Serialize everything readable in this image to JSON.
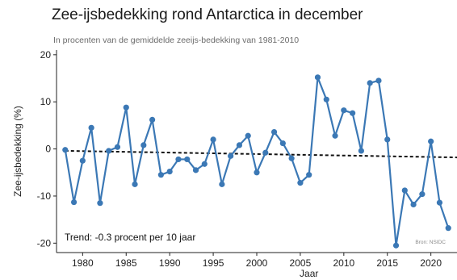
{
  "chart_data": {
    "type": "line",
    "title": "Zee-ijsbedekking rond Antarctica in december",
    "subtitle": "In procenten van de gemiddelde zeeijs-bedekking van 1981-2010",
    "xlabel": "Jaar",
    "ylabel": "Zee-ijsbedekking (%)",
    "xlim": [
      1977,
      2023
    ],
    "ylim": [
      -22,
      21
    ],
    "xticks": [
      1980,
      1985,
      1990,
      1995,
      2000,
      2005,
      2010,
      2015,
      2020
    ],
    "yticks": [
      -20,
      -10,
      0,
      10,
      20
    ],
    "grid": false,
    "series_color": "#3b78b5",
    "x": [
      1978,
      1979,
      1980,
      1981,
      1982,
      1983,
      1984,
      1985,
      1986,
      1987,
      1988,
      1989,
      1990,
      1991,
      1992,
      1993,
      1994,
      1995,
      1996,
      1997,
      1998,
      1999,
      2000,
      2001,
      2002,
      2003,
      2004,
      2005,
      2006,
      2007,
      2008,
      2009,
      2010,
      2011,
      2012,
      2013,
      2014,
      2015,
      2016,
      2017,
      2018,
      2019,
      2020,
      2021,
      2022
    ],
    "values": [
      -0.2,
      -11.3,
      -2.5,
      4.5,
      -11.5,
      -0.4,
      0.4,
      8.8,
      -7.5,
      0.8,
      6.2,
      -5.5,
      -4.8,
      -2.2,
      -2.2,
      -4.5,
      -3.2,
      2.0,
      -7.5,
      -1.5,
      0.8,
      2.8,
      -5.0,
      -0.8,
      3.6,
      1.2,
      -2.0,
      -7.2,
      -5.5,
      15.2,
      10.5,
      2.8,
      8.2,
      7.6,
      -0.4,
      14.0,
      14.5,
      2.0,
      -20.5,
      -8.8,
      -11.8,
      -9.6,
      1.6,
      -11.4,
      -16.8
    ],
    "trend": {
      "label": "Trend: -0.3 procent per 10 jaar",
      "start": [
        1978,
        -0.4
      ],
      "end": [
        2023,
        -1.8
      ]
    },
    "source": "Bron: NSIDC"
  }
}
